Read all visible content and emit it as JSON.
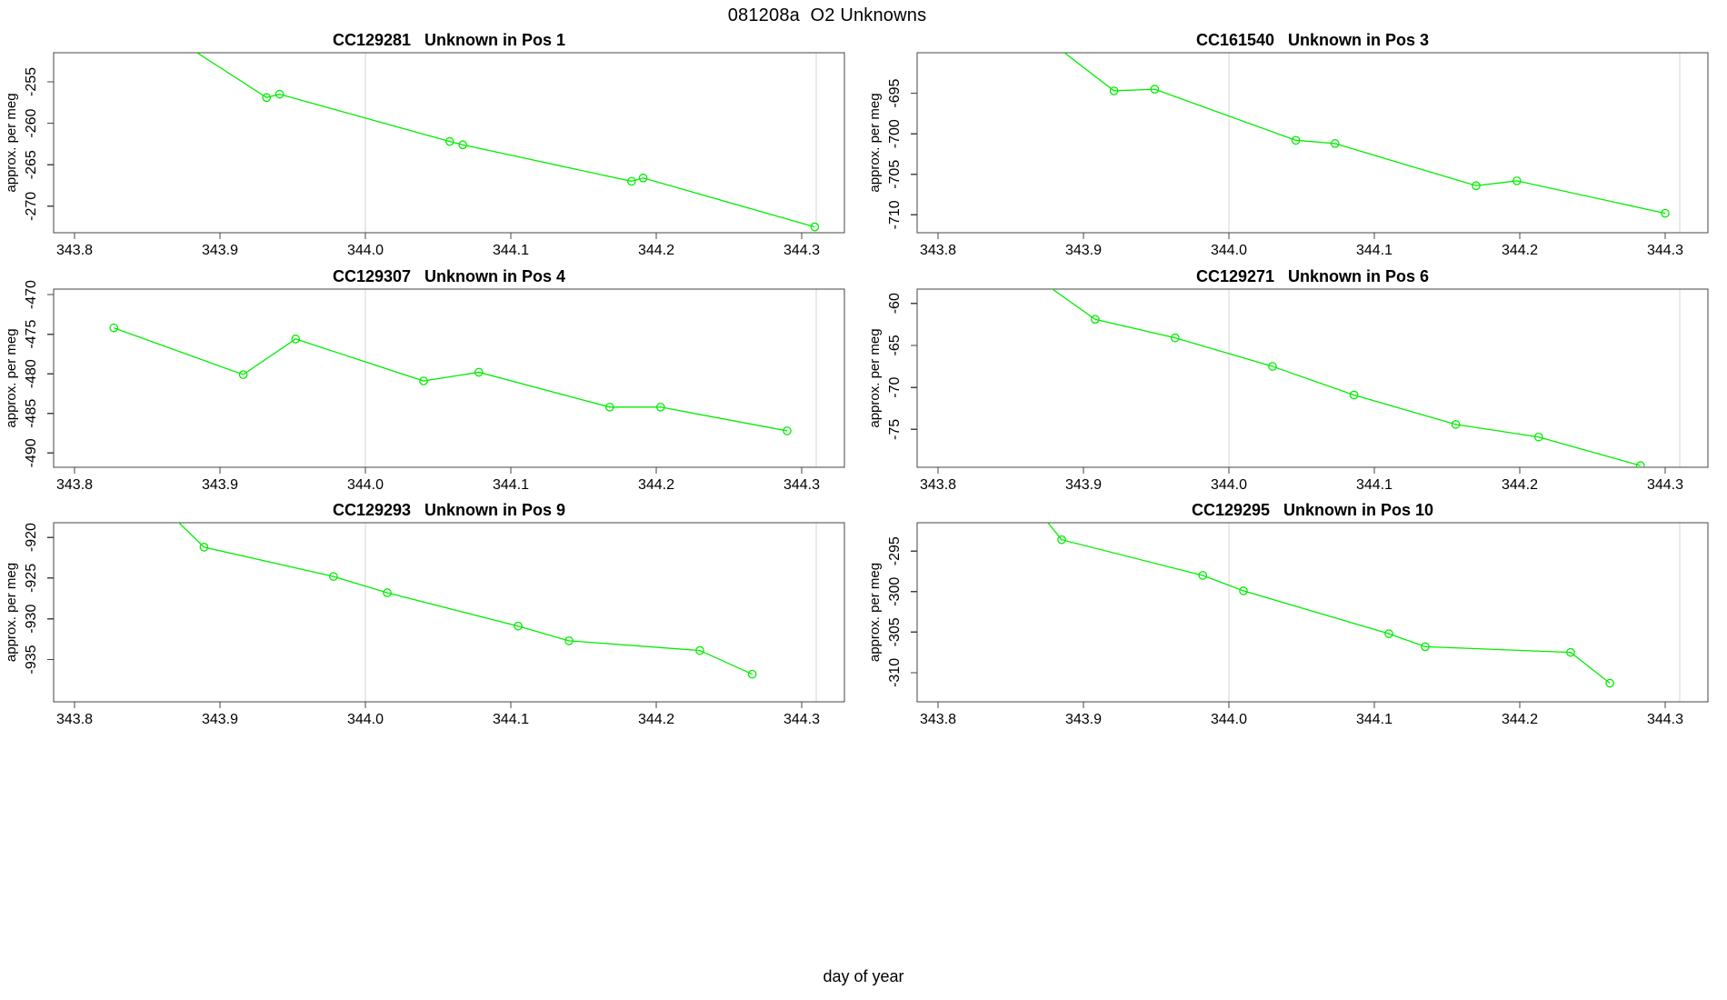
{
  "page_title": "081208a  O2 Unknowns",
  "xlabel": "day of year",
  "colors": {
    "line": "#00ee00",
    "grid": "#d6d6d6",
    "axis": "#444444",
    "text": "#000000",
    "background": "#ffffff"
  },
  "chart_data": [
    {
      "type": "line",
      "marker": "open-circle",
      "title": "CC129281   Unknown in Pos 1",
      "sample_id": "CC129281",
      "position_label": "Unknown in Pos 1",
      "ylabel": "approx. per meg",
      "xlim": [
        343.7856,
        344.3294
      ],
      "ylim": [
        -273.2,
        -251.5
      ],
      "xticks": [
        343.8,
        343.9,
        344.0,
        344.1,
        344.2,
        344.3
      ],
      "yticks": [
        -255,
        -260,
        -265,
        -270
      ],
      "vlines": [
        344.0,
        344.31
      ],
      "x": [
        343.871,
        343.932,
        343.941,
        344.058,
        344.067,
        344.183,
        344.191,
        344.309
      ],
      "y": [
        -250.0,
        -256.9,
        -256.5,
        -262.2,
        -262.6,
        -267.0,
        -266.6,
        -272.5
      ]
    },
    {
      "type": "line",
      "marker": "open-circle",
      "title": "CC161540   Unknown in Pos 3",
      "sample_id": "CC161540",
      "position_label": "Unknown in Pos 3",
      "ylabel": "approx. per meg",
      "xlim": [
        343.7856,
        344.3294
      ],
      "ylim": [
        -712.2,
        -690.0
      ],
      "xticks": [
        343.8,
        343.9,
        344.0,
        344.1,
        344.2,
        344.3
      ],
      "yticks": [
        -695,
        -700,
        -705,
        -710
      ],
      "vlines": [
        344.0,
        344.31
      ],
      "x": [
        343.876,
        343.921,
        343.949,
        344.046,
        344.073,
        344.17,
        344.198,
        344.3
      ],
      "y": [
        -688.5,
        -694.7,
        -694.5,
        -700.8,
        -701.2,
        -706.4,
        -705.8,
        -709.8
      ]
    },
    {
      "type": "line",
      "marker": "open-circle",
      "title": "CC129307   Unknown in Pos 4",
      "sample_id": "CC129307",
      "position_label": "Unknown in Pos 4",
      "ylabel": "approx. per meg",
      "xlim": [
        343.7856,
        344.3294
      ],
      "ylim": [
        -491.8,
        -469.3
      ],
      "xticks": [
        343.8,
        343.9,
        344.0,
        344.1,
        344.2,
        344.3
      ],
      "yticks": [
        -470,
        -475,
        -480,
        -485,
        -490
      ],
      "vlines": [
        344.0,
        344.31
      ],
      "x": [
        343.827,
        343.916,
        343.952,
        344.04,
        344.078,
        344.168,
        344.203,
        344.29
      ],
      "y": [
        -474.2,
        -480.1,
        -475.6,
        -480.9,
        -479.8,
        -484.2,
        -484.2,
        -487.2
      ]
    },
    {
      "type": "line",
      "marker": "open-circle",
      "title": "CC129271   Unknown in Pos 6",
      "sample_id": "CC129271",
      "position_label": "Unknown in Pos 6",
      "ylabel": "approx. per meg",
      "xlim": [
        343.7856,
        344.3294
      ],
      "ylim": [
        -79.5,
        -58.3
      ],
      "xticks": [
        343.8,
        343.9,
        344.0,
        344.1,
        344.2,
        344.3
      ],
      "yticks": [
        -60,
        -65,
        -70,
        -75
      ],
      "vlines": [
        344.0,
        344.31
      ],
      "x": [
        343.868,
        343.908,
        343.963,
        344.03,
        344.086,
        344.156,
        344.213,
        344.283
      ],
      "y": [
        -57.0,
        -61.9,
        -64.1,
        -67.5,
        -70.9,
        -74.4,
        -75.9,
        -79.3
      ]
    },
    {
      "type": "line",
      "marker": "open-circle",
      "title": "CC129293   Unknown in Pos 9",
      "sample_id": "CC129293",
      "position_label": "Unknown in Pos 9",
      "ylabel": "approx. per meg",
      "xlim": [
        343.7856,
        344.3294
      ],
      "ylim": [
        -940.2,
        -918.2
      ],
      "xticks": [
        343.8,
        343.9,
        344.0,
        344.1,
        344.2,
        344.3
      ],
      "yticks": [
        -920,
        -925,
        -930,
        -935
      ],
      "vlines": [
        344.0,
        344.31
      ],
      "x": [
        343.862,
        343.889,
        343.978,
        344.015,
        344.105,
        344.14,
        344.23,
        344.266
      ],
      "y": [
        -916.5,
        -921.2,
        -924.8,
        -926.8,
        -930.9,
        -932.7,
        -933.9,
        -936.8
      ]
    },
    {
      "type": "line",
      "marker": "open-circle",
      "title": "CC129295   Unknown in Pos 10",
      "sample_id": "CC129295",
      "position_label": "Unknown in Pos 10",
      "ylabel": "approx. per meg",
      "xlim": [
        343.7856,
        344.3294
      ],
      "ylim": [
        -313.6,
        -291.5
      ],
      "xticks": [
        343.8,
        343.9,
        344.0,
        344.1,
        344.2,
        344.3
      ],
      "yticks": [
        -295,
        -300,
        -305,
        -310
      ],
      "vlines": [
        344.0,
        344.31
      ],
      "x": [
        343.871,
        343.885,
        343.982,
        344.01,
        344.11,
        344.135,
        344.235,
        344.262
      ],
      "y": [
        -290.5,
        -293.6,
        -298.0,
        -299.9,
        -305.2,
        -306.8,
        -307.5,
        -311.3
      ]
    }
  ]
}
